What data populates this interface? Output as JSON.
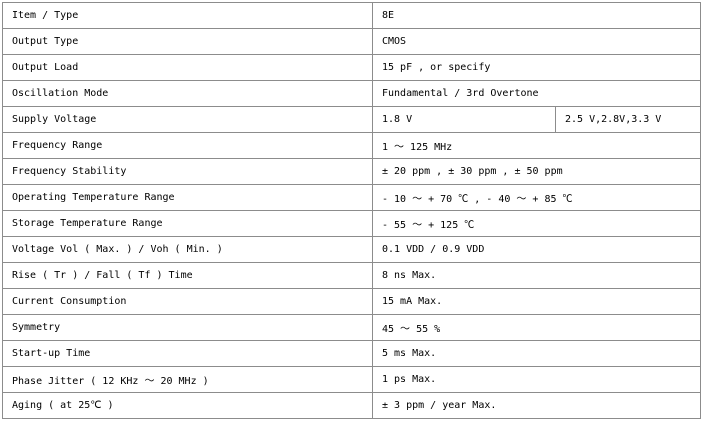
{
  "rows": [
    {
      "label": "Item / Type",
      "value": "8E"
    },
    {
      "label": "Output Type",
      "value": "CMOS"
    },
    {
      "label": "Output Load",
      "value": "15 pF , or specify"
    },
    {
      "label": "Oscillation Mode",
      "value": "Fundamental / 3rd Overtone"
    },
    {
      "label": "Supply Voltage",
      "value": "1.8 V",
      "value2": "2.5 V,2.8V,3.3 V"
    },
    {
      "label": "Frequency Range",
      "value": "1 ～ 125 MHz"
    },
    {
      "label": "Frequency Stability",
      "value": "± 20 ppm , ± 30 ppm , ± 50 ppm"
    },
    {
      "label": "Operating Temperature Range",
      "value": "- 10 ～ + 70 ℃ , - 40 ～ + 85 ℃"
    },
    {
      "label": "Storage Temperature Range",
      "value": "- 55 ～ + 125 ℃"
    },
    {
      "label": "Voltage Vol ( Max. ) / Voh ( Min. )",
      "value": "0.1 VDD / 0.9 VDD"
    },
    {
      "label": "Rise ( Tr ) / Fall ( Tf ) Time",
      "value": "8 ns Max."
    },
    {
      "label": "Current Consumption",
      "value": "15 mA Max."
    },
    {
      "label": "Symmetry",
      "value": "45 ～ 55 %"
    },
    {
      "label": "Start-up Time",
      "value": "5 ms Max."
    },
    {
      "label": "Phase Jitter ( 12 KHz ～ 20 MHz )",
      "value": "1 ps Max."
    },
    {
      "label": "Aging ( at 25℃ )",
      "value": "± 3 ppm / year Max."
    }
  ]
}
